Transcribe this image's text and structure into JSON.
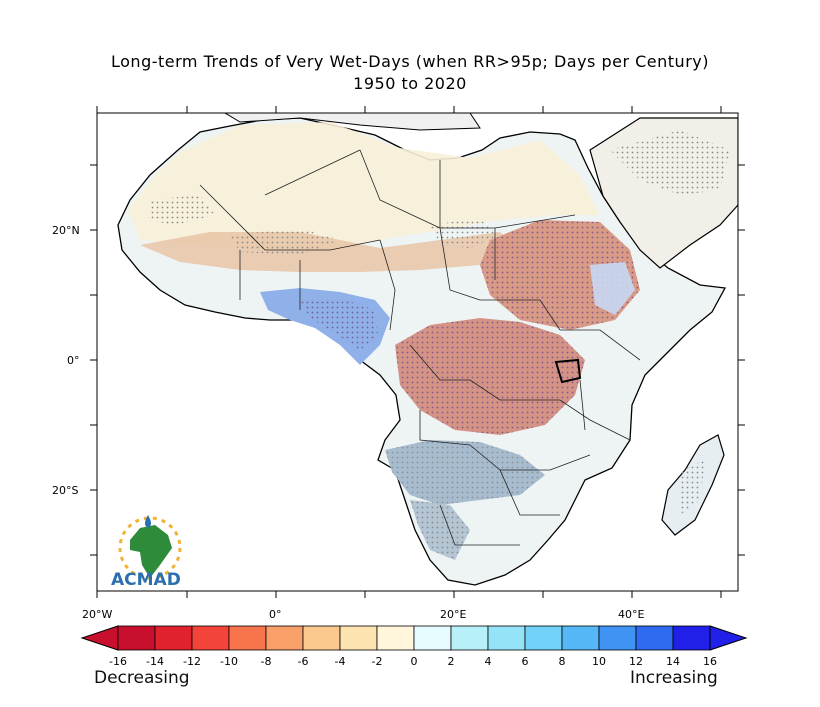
{
  "title": {
    "line1": "Long-term Trends of Very Wet-Days (when RR>95p; Days per Century)",
    "line2": "1950 to 2020"
  },
  "axes": {
    "lat_labels": [
      "20°N",
      "0°",
      "20°S"
    ],
    "lon_labels": [
      "20°W",
      "0°",
      "20°E",
      "40°E"
    ]
  },
  "colorbar": {
    "tick_labels": [
      "-16",
      "-14",
      "-12",
      "-10",
      "-8",
      "-6",
      "-4",
      "-2",
      "0",
      "2",
      "4",
      "6",
      "8",
      "10",
      "12",
      "14",
      "16"
    ],
    "colors": [
      "#c8102e",
      "#e0222f",
      "#f2443a",
      "#f7744c",
      "#f9a06a",
      "#fbc98e",
      "#fde3b0",
      "#fff6dc",
      "#e6fbff",
      "#b8f0fa",
      "#95e3f8",
      "#71d1f8",
      "#55b7f6",
      "#3f94f3",
      "#2f6bf0",
      "#2020e8"
    ],
    "left_word": "Decreasing",
    "right_word": "Increasing"
  },
  "logo": {
    "text": "ACMAD"
  },
  "colors": {
    "decreasing_fill": "#d99a86",
    "increasing_fill": "#7aa9e8",
    "neutral_fill": "#eaf3f4",
    "stipple": "#8a8a8a"
  }
}
